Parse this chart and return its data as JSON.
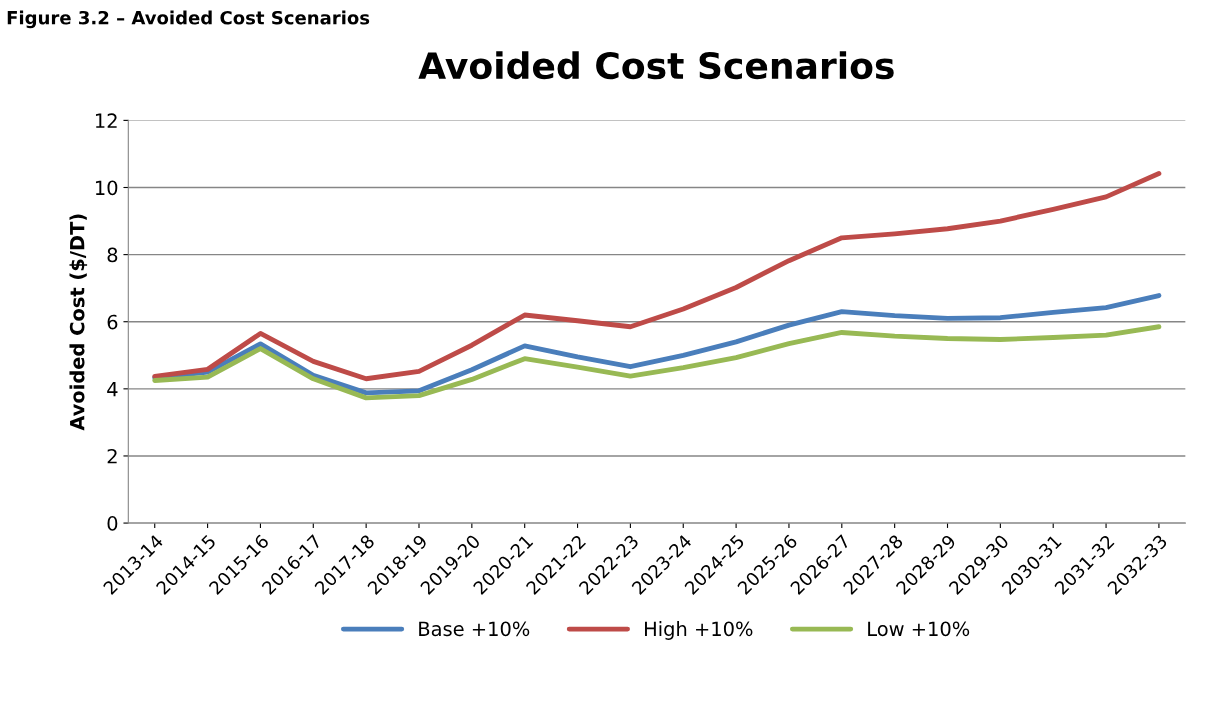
{
  "chart_data": {
    "type": "line",
    "title": "Avoided Cost Scenarios",
    "ylabel": "Avoided Cost ($/DT)",
    "annotations": [
      "Figure 3.2 – Avoided Cost Scenarios"
    ],
    "categories": [
      "2013-14",
      "2014-15",
      "2015-16",
      "2016-17",
      "2017-18",
      "2018-19",
      "2019-20",
      "2020-21",
      "2021-22",
      "2022-23",
      "2023-24",
      "2024-25",
      "2025-26",
      "2026-27",
      "2027-28",
      "2028-29",
      "2029-30",
      "2030-31",
      "2031-32",
      "2032-33"
    ],
    "series": [
      {
        "name": "Base +10%",
        "color": "#4a7ebb",
        "values": [
          4.33,
          4.5,
          5.34,
          4.4,
          3.88,
          3.94,
          4.57,
          5.28,
          4.95,
          4.66,
          5.0,
          5.4,
          5.9,
          6.3,
          6.18,
          6.1,
          6.12,
          6.28,
          6.42,
          6.78
        ]
      },
      {
        "name": "High +10%",
        "color": "#be4b48",
        "values": [
          4.37,
          4.58,
          5.65,
          4.82,
          4.3,
          4.52,
          5.3,
          6.2,
          6.03,
          5.85,
          6.38,
          7.02,
          7.82,
          8.5,
          8.62,
          8.77,
          9.0,
          9.35,
          9.72,
          10.42
        ]
      },
      {
        "name": "Low +10%",
        "color": "#98b954",
        "values": [
          4.25,
          4.35,
          5.2,
          4.3,
          3.73,
          3.8,
          4.28,
          4.9,
          4.65,
          4.38,
          4.63,
          4.93,
          5.35,
          5.68,
          5.57,
          5.5,
          5.47,
          5.53,
          5.6,
          5.85
        ]
      }
    ],
    "ylim": [
      0,
      12
    ],
    "yticks": [
      0,
      2,
      4,
      6,
      8,
      10,
      12
    ],
    "grid": "y",
    "legend": "bottom",
    "marker": "none",
    "line_style": "solid"
  }
}
